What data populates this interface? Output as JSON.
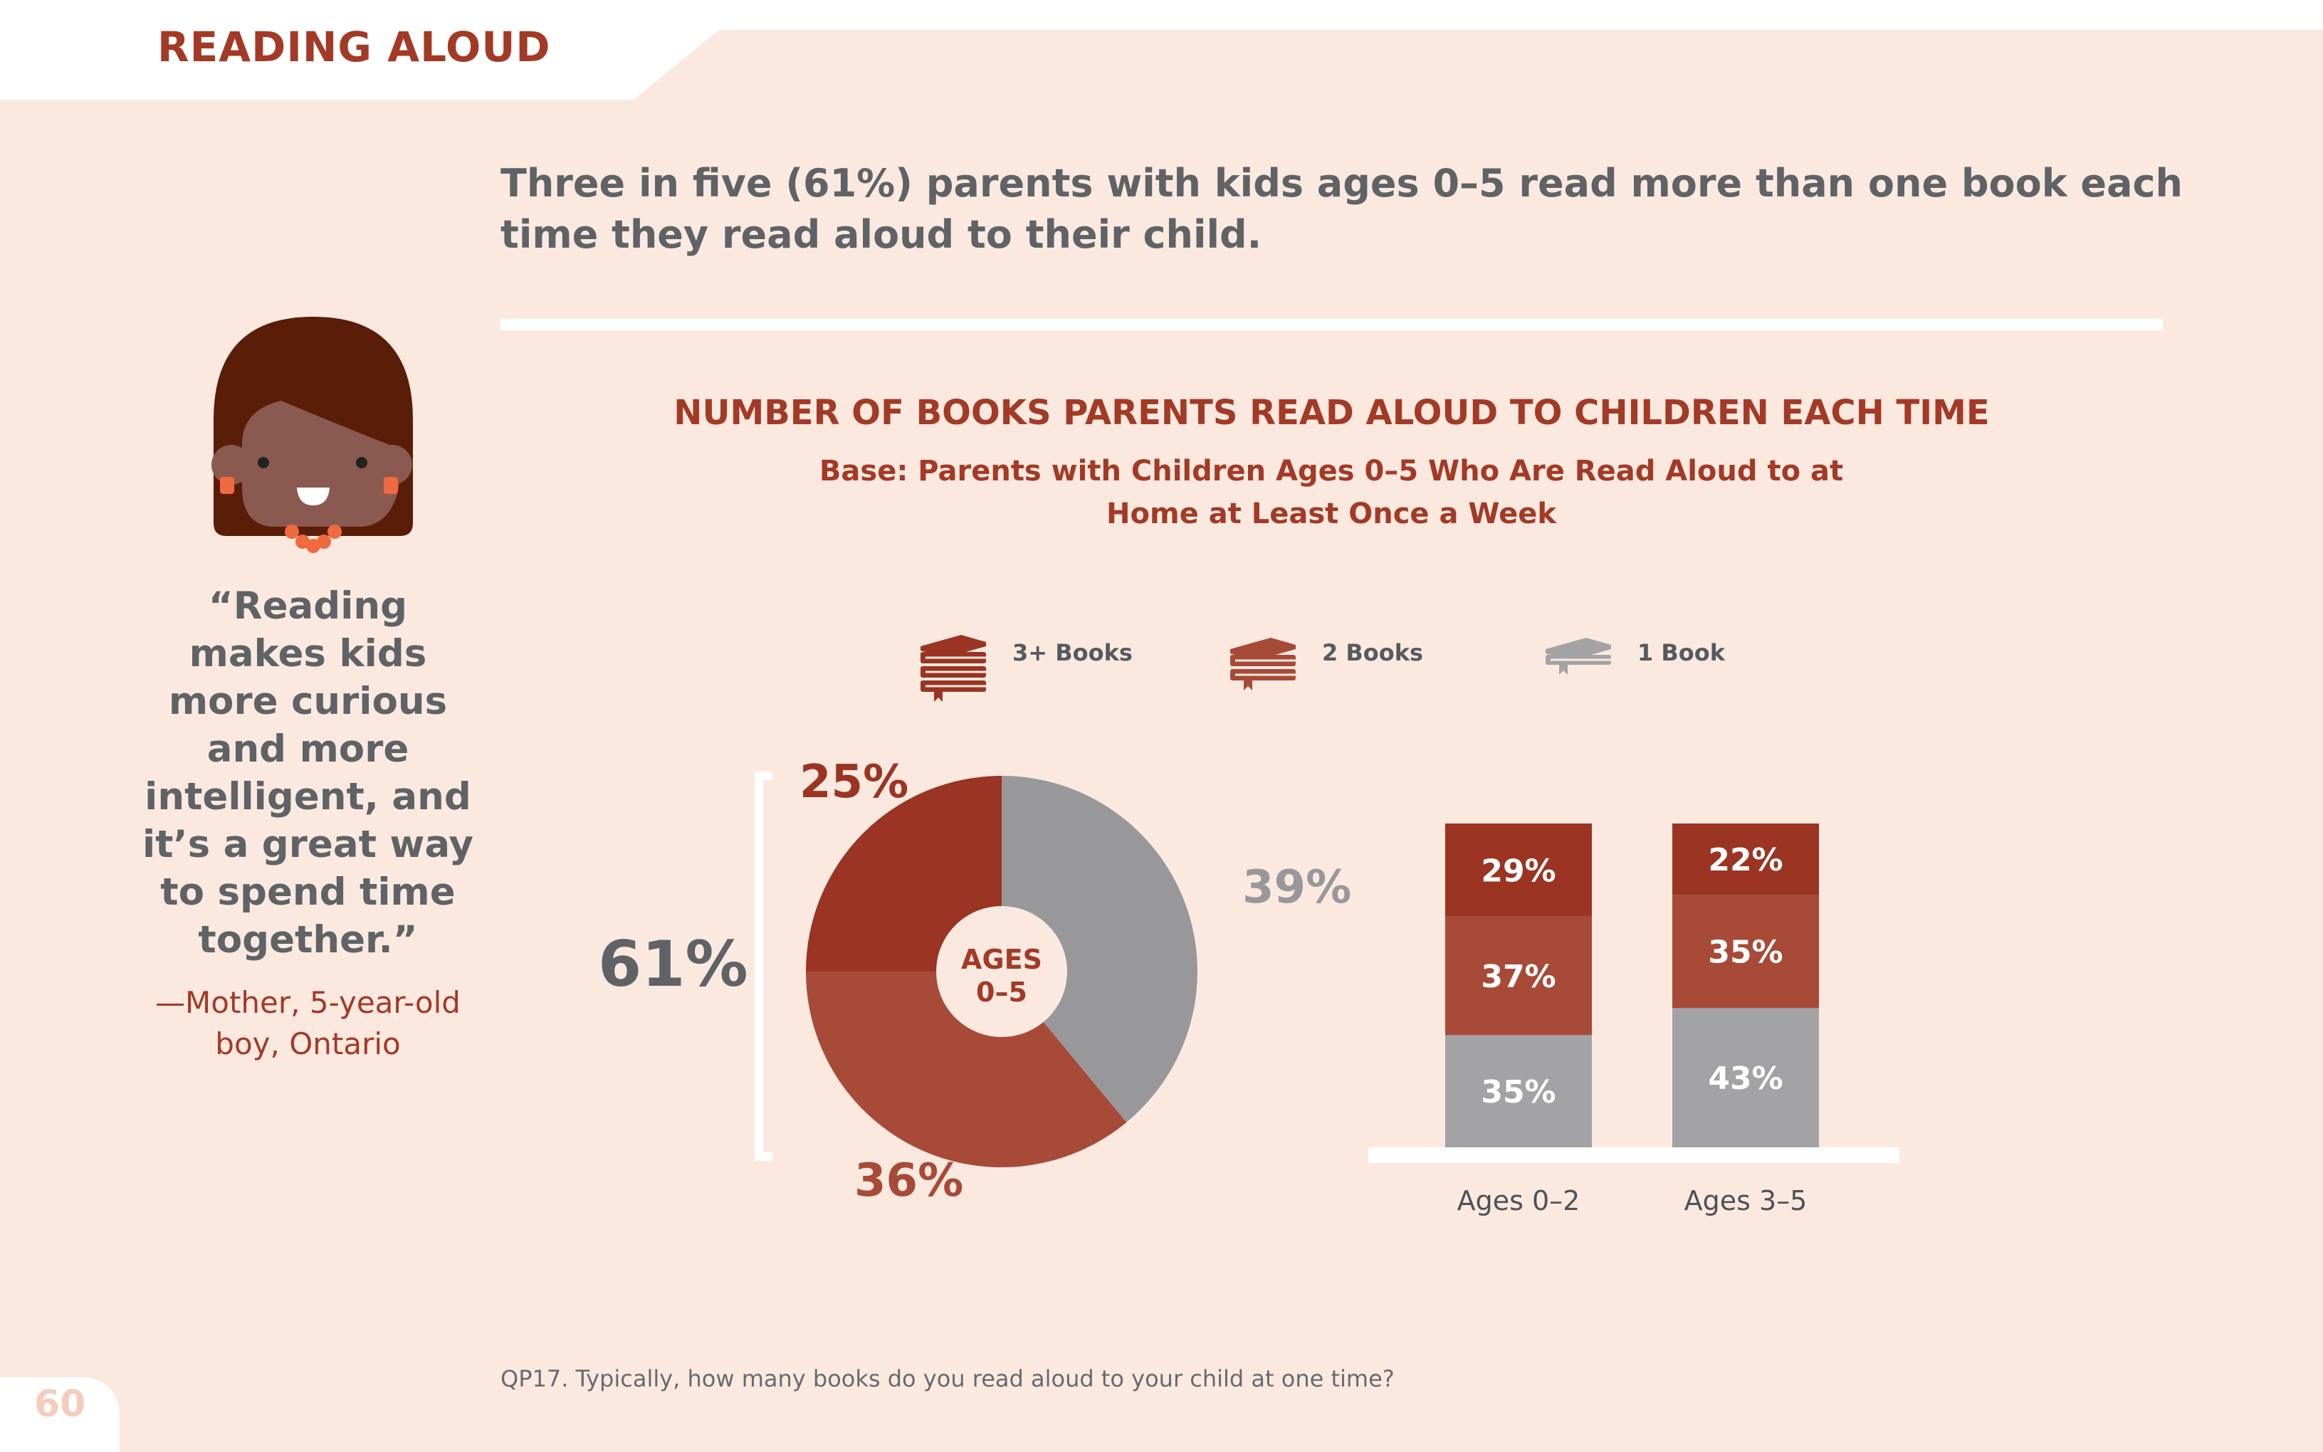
{
  "header": {
    "section_title": "READING ALOUD"
  },
  "headline": "Three in five (61%) parents with kids ages 0–5 read more than one book each time they read aloud to their child.",
  "quote": {
    "text": "“Reading makes kids more curious and more intelligent, and it’s a great way to spend time together.”",
    "attribution": "—Mother, 5-year-old boy, Ontario"
  },
  "legend": [
    {
      "label": "3+ Books",
      "icon": "stack-of-three-books-icon",
      "color": "#9b3422"
    },
    {
      "label": "2 Books",
      "icon": "stack-of-two-books-icon",
      "color": "#a84a38"
    },
    {
      "label": "1 Book",
      "icon": "single-book-icon",
      "color": "#a3a3a6"
    }
  ],
  "colors": {
    "three_plus": "#9b3422",
    "two": "#a84a38",
    "one": "#98989b",
    "bar_one": "#a3a3a6",
    "accent_text": "#a33a26",
    "gray_text": "#5f6366"
  },
  "footnote": "QP17. Typically, how many books do you read aloud to your child at one time?",
  "page_number": "60",
  "chart_data": [
    {
      "type": "pie",
      "title": "NUMBER OF BOOKS PARENTS READ ALOUD TO CHILDREN EACH TIME",
      "subtitle": "Base: Parents with Children Ages 0–5 Who Are Read Aloud to at Home at Least Once a Week",
      "center_label": "AGES 0–5",
      "slices": [
        {
          "name": "3+ Books",
          "value": 25,
          "label": "25%"
        },
        {
          "name": "2 Books",
          "value": 36,
          "label": "36%"
        },
        {
          "name": "1 Book",
          "value": 39,
          "label": "39%"
        }
      ],
      "bracket_label": "61%"
    },
    {
      "type": "bar",
      "stacked": true,
      "categories": [
        "Ages 0–2",
        "Ages 3–5"
      ],
      "series": [
        {
          "name": "1 Book",
          "values": [
            35,
            43
          ],
          "labels": [
            "35%",
            "43%"
          ]
        },
        {
          "name": "2 Books",
          "values": [
            37,
            35
          ],
          "labels": [
            "37%",
            "35%"
          ]
        },
        {
          "name": "3+ Books",
          "values": [
            29,
            22
          ],
          "labels": [
            "29%",
            "22%"
          ]
        }
      ],
      "ylim": [
        0,
        100
      ]
    }
  ]
}
